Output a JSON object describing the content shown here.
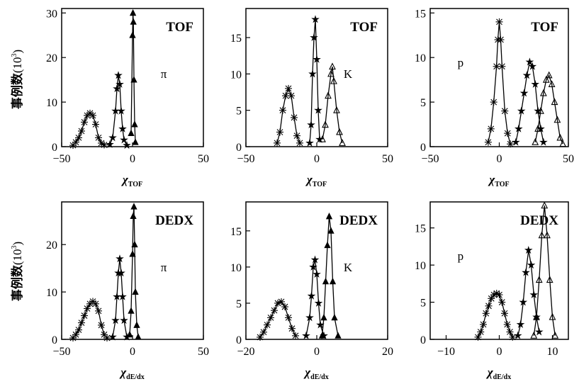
{
  "ylabel_main": "事例数",
  "ylabel_open": "(10",
  "ylabel_sup": "3",
  "ylabel_close": ")",
  "chart_data": [
    {
      "type": "line",
      "detector_label": "TOF",
      "particle_label": "π",
      "xlabel": "χ",
      "xlabel_sub": "TOF",
      "xlim": [
        -50,
        50
      ],
      "ylim": [
        0,
        31
      ],
      "xticks": [
        -50,
        0,
        50
      ],
      "xtick_labels": [
        "−50",
        "0",
        "50"
      ],
      "yticks": [
        0,
        10,
        20,
        30
      ],
      "ytick_labels": [
        "0",
        "10",
        "20",
        "30"
      ],
      "series": [
        {
          "marker": "cross",
          "points": [
            [
              -42,
              0.3
            ],
            [
              -40,
              1
            ],
            [
              -38,
              2
            ],
            [
              -36,
              3.5
            ],
            [
              -34,
              5.5
            ],
            [
              -32,
              7
            ],
            [
              -30,
              7.5
            ],
            [
              -28,
              7
            ],
            [
              -26,
              5
            ],
            [
              -24,
              2
            ],
            [
              -22,
              0.8
            ],
            [
              -20,
              0.4
            ]
          ]
        },
        {
          "marker": "star",
          "points": [
            [
              -16,
              0.5
            ],
            [
              -14,
              2
            ],
            [
              -12,
              8
            ],
            [
              -11,
              13
            ],
            [
              -10,
              16
            ],
            [
              -9,
              14
            ],
            [
              -8,
              8
            ],
            [
              -7,
              4
            ],
            [
              -6,
              1.5
            ],
            [
              -4,
              0.3
            ]
          ]
        },
        {
          "marker": "triangle-filled",
          "points": [
            [
              -1,
              3
            ],
            [
              0,
              25
            ],
            [
              0.3,
              30
            ],
            [
              0.6,
              28
            ],
            [
              1,
              15
            ],
            [
              1.5,
              5
            ],
            [
              2,
              1
            ]
          ]
        }
      ]
    },
    {
      "type": "line",
      "detector_label": "TOF",
      "particle_label": "K",
      "xlabel": "χ",
      "xlabel_sub": "TOF",
      "xlim": [
        -50,
        50
      ],
      "ylim": [
        0,
        19
      ],
      "xticks": [
        -50,
        0,
        50
      ],
      "xtick_labels": [
        "−50",
        "0",
        "50"
      ],
      "yticks": [
        0,
        5,
        10,
        15
      ],
      "ytick_labels": [
        "0",
        "5",
        "10",
        "15"
      ],
      "series": [
        {
          "marker": "cross",
          "points": [
            [
              -28,
              0.5
            ],
            [
              -26,
              2
            ],
            [
              -24,
              5
            ],
            [
              -22,
              7
            ],
            [
              -20,
              8
            ],
            [
              -18,
              7
            ],
            [
              -16,
              4
            ],
            [
              -14,
              1.5
            ],
            [
              -12,
              0.5
            ]
          ]
        },
        {
          "marker": "star",
          "points": [
            [
              -5,
              0.5
            ],
            [
              -4,
              3
            ],
            [
              -3,
              10
            ],
            [
              -2,
              15
            ],
            [
              -1,
              17.5
            ],
            [
              0,
              12
            ],
            [
              1,
              5
            ],
            [
              2,
              1
            ]
          ]
        },
        {
          "marker": "triangle-open",
          "points": [
            [
              4,
              1
            ],
            [
              6,
              3
            ],
            [
              8,
              7
            ],
            [
              10,
              10
            ],
            [
              11,
              11
            ],
            [
              12,
              9
            ],
            [
              14,
              5
            ],
            [
              16,
              2
            ],
            [
              18,
              0.5
            ]
          ]
        }
      ]
    },
    {
      "type": "line",
      "detector_label": "TOF",
      "particle_label": "p",
      "xlabel": "χ",
      "xlabel_sub": "TOF",
      "xlim": [
        -50,
        50
      ],
      "ylim": [
        0,
        15.5
      ],
      "xticks": [
        -50,
        0,
        50
      ],
      "xtick_labels": [
        "−50",
        "0",
        "50"
      ],
      "yticks": [
        0,
        5,
        10,
        15
      ],
      "ytick_labels": [
        "0",
        "5",
        "10",
        "15"
      ],
      "series": [
        {
          "marker": "cross",
          "points": [
            [
              -8,
              0.5
            ],
            [
              -6,
              2
            ],
            [
              -4,
              5
            ],
            [
              -2,
              9
            ],
            [
              -1,
              12
            ],
            [
              0,
              14
            ],
            [
              1,
              12
            ],
            [
              2,
              9
            ],
            [
              4,
              4
            ],
            [
              6,
              1.5
            ],
            [
              8,
              0.3
            ]
          ]
        },
        {
          "marker": "star",
          "points": [
            [
              12,
              0.5
            ],
            [
              14,
              2
            ],
            [
              16,
              4
            ],
            [
              18,
              6
            ],
            [
              20,
              8
            ],
            [
              22,
              9.5
            ],
            [
              24,
              9
            ],
            [
              26,
              7
            ],
            [
              28,
              4
            ],
            [
              30,
              2
            ],
            [
              32,
              0.5
            ]
          ]
        },
        {
          "marker": "triangle-open",
          "points": [
            [
              26,
              0.5
            ],
            [
              28,
              2
            ],
            [
              30,
              4
            ],
            [
              32,
              6
            ],
            [
              34,
              7.5
            ],
            [
              36,
              8
            ],
            [
              38,
              7
            ],
            [
              40,
              5
            ],
            [
              42,
              3
            ],
            [
              44,
              1
            ],
            [
              46,
              0.3
            ]
          ]
        }
      ]
    },
    {
      "type": "line",
      "detector_label": "DEDX",
      "particle_label": "π",
      "xlabel": "χ",
      "xlabel_sub": "dE/dx",
      "xlim": [
        -50,
        50
      ],
      "ylim": [
        0,
        29
      ],
      "xticks": [
        -50,
        0,
        50
      ],
      "xtick_labels": [
        "−50",
        "0",
        "50"
      ],
      "yticks": [
        0,
        10,
        20
      ],
      "ytick_labels": [
        "0",
        "10",
        "20"
      ],
      "series": [
        {
          "marker": "cross",
          "points": [
            [
              -42,
              0.3
            ],
            [
              -40,
              1
            ],
            [
              -38,
              2
            ],
            [
              -36,
              3.5
            ],
            [
              -34,
              5
            ],
            [
              -32,
              6.5
            ],
            [
              -30,
              7.5
            ],
            [
              -28,
              8
            ],
            [
              -26,
              7.5
            ],
            [
              -24,
              6
            ],
            [
              -22,
              3
            ],
            [
              -20,
              1
            ],
            [
              -18,
              0.3
            ]
          ]
        },
        {
          "marker": "star",
          "points": [
            [
              -14,
              0.5
            ],
            [
              -12,
              4
            ],
            [
              -11,
              9
            ],
            [
              -10,
              14
            ],
            [
              -9,
              17
            ],
            [
              -8,
              14
            ],
            [
              -7,
              9
            ],
            [
              -6,
              4
            ],
            [
              -4,
              0.5
            ]
          ]
        },
        {
          "marker": "triangle-filled",
          "points": [
            [
              -2,
              1
            ],
            [
              -1,
              6
            ],
            [
              0,
              18
            ],
            [
              0.5,
              26
            ],
            [
              1,
              28
            ],
            [
              1.5,
              20
            ],
            [
              2,
              10
            ],
            [
              3,
              3
            ],
            [
              4,
              0.5
            ]
          ]
        }
      ]
    },
    {
      "type": "line",
      "detector_label": "DEDX",
      "particle_label": "K",
      "xlabel": "χ",
      "xlabel_sub": "dE/dx",
      "xlim": [
        -20,
        20
      ],
      "ylim": [
        0,
        19
      ],
      "xticks": [
        -20,
        0,
        20
      ],
      "xtick_labels": [
        "−20",
        "0",
        "20"
      ],
      "yticks": [
        0,
        5,
        10,
        15
      ],
      "ytick_labels": [
        "0",
        "5",
        "10",
        "15"
      ],
      "series": [
        {
          "marker": "cross",
          "points": [
            [
              -16,
              0.3
            ],
            [
              -15,
              1
            ],
            [
              -14,
              2
            ],
            [
              -13,
              3
            ],
            [
              -12,
              4
            ],
            [
              -11,
              5
            ],
            [
              -10,
              5.2
            ],
            [
              -9,
              4.5
            ],
            [
              -8,
              3
            ],
            [
              -7,
              1.5
            ],
            [
              -6,
              0.5
            ]
          ]
        },
        {
          "marker": "star",
          "points": [
            [
              -3,
              0.5
            ],
            [
              -2,
              3
            ],
            [
              -1.5,
              6
            ],
            [
              -1,
              10
            ],
            [
              -0.5,
              11
            ],
            [
              0,
              9
            ],
            [
              0.5,
              5
            ],
            [
              1,
              2
            ],
            [
              2,
              0.5
            ]
          ]
        },
        {
          "marker": "triangle-filled",
          "points": [
            [
              1.5,
              0.5
            ],
            [
              2,
              3
            ],
            [
              2.5,
              8
            ],
            [
              3,
              13
            ],
            [
              3.5,
              17
            ],
            [
              4,
              15
            ],
            [
              4.5,
              8
            ],
            [
              5,
              3
            ],
            [
              6,
              0.5
            ]
          ]
        }
      ]
    },
    {
      "type": "line",
      "detector_label": "DEDX",
      "particle_label": "p",
      "xlabel": "χ",
      "xlabel_sub": "dE/dx",
      "xlim": [
        -13,
        13
      ],
      "ylim": [
        0,
        18.5
      ],
      "xticks": [
        -10,
        0,
        10
      ],
      "xtick_labels": [
        "−10",
        "0",
        "10"
      ],
      "yticks": [
        0,
        5,
        10,
        15
      ],
      "ytick_labels": [
        "0",
        "5",
        "10",
        "15"
      ],
      "series": [
        {
          "marker": "cross",
          "points": [
            [
              -4,
              0.3
            ],
            [
              -3.5,
              1
            ],
            [
              -3,
              2
            ],
            [
              -2.5,
              3.5
            ],
            [
              -2,
              4.5
            ],
            [
              -1.5,
              5.5
            ],
            [
              -1,
              6
            ],
            [
              -0.5,
              6.2
            ],
            [
              0,
              6
            ],
            [
              0.5,
              5
            ],
            [
              1,
              3.5
            ],
            [
              1.5,
              2
            ],
            [
              2,
              1
            ],
            [
              2.5,
              0.3
            ]
          ]
        },
        {
          "marker": "star",
          "points": [
            [
              3.5,
              0.5
            ],
            [
              4,
              2
            ],
            [
              4.5,
              5
            ],
            [
              5,
              9
            ],
            [
              5.5,
              12
            ],
            [
              6,
              10
            ],
            [
              6.5,
              6
            ],
            [
              7,
              3
            ],
            [
              7.5,
              1
            ]
          ]
        },
        {
          "marker": "triangle-open",
          "points": [
            [
              6.5,
              0.5
            ],
            [
              7,
              3
            ],
            [
              7.5,
              8
            ],
            [
              8,
              14
            ],
            [
              8.5,
              18
            ],
            [
              9,
              14
            ],
            [
              9.5,
              8
            ],
            [
              10,
              3
            ],
            [
              10.5,
              0.5
            ]
          ]
        }
      ]
    }
  ]
}
